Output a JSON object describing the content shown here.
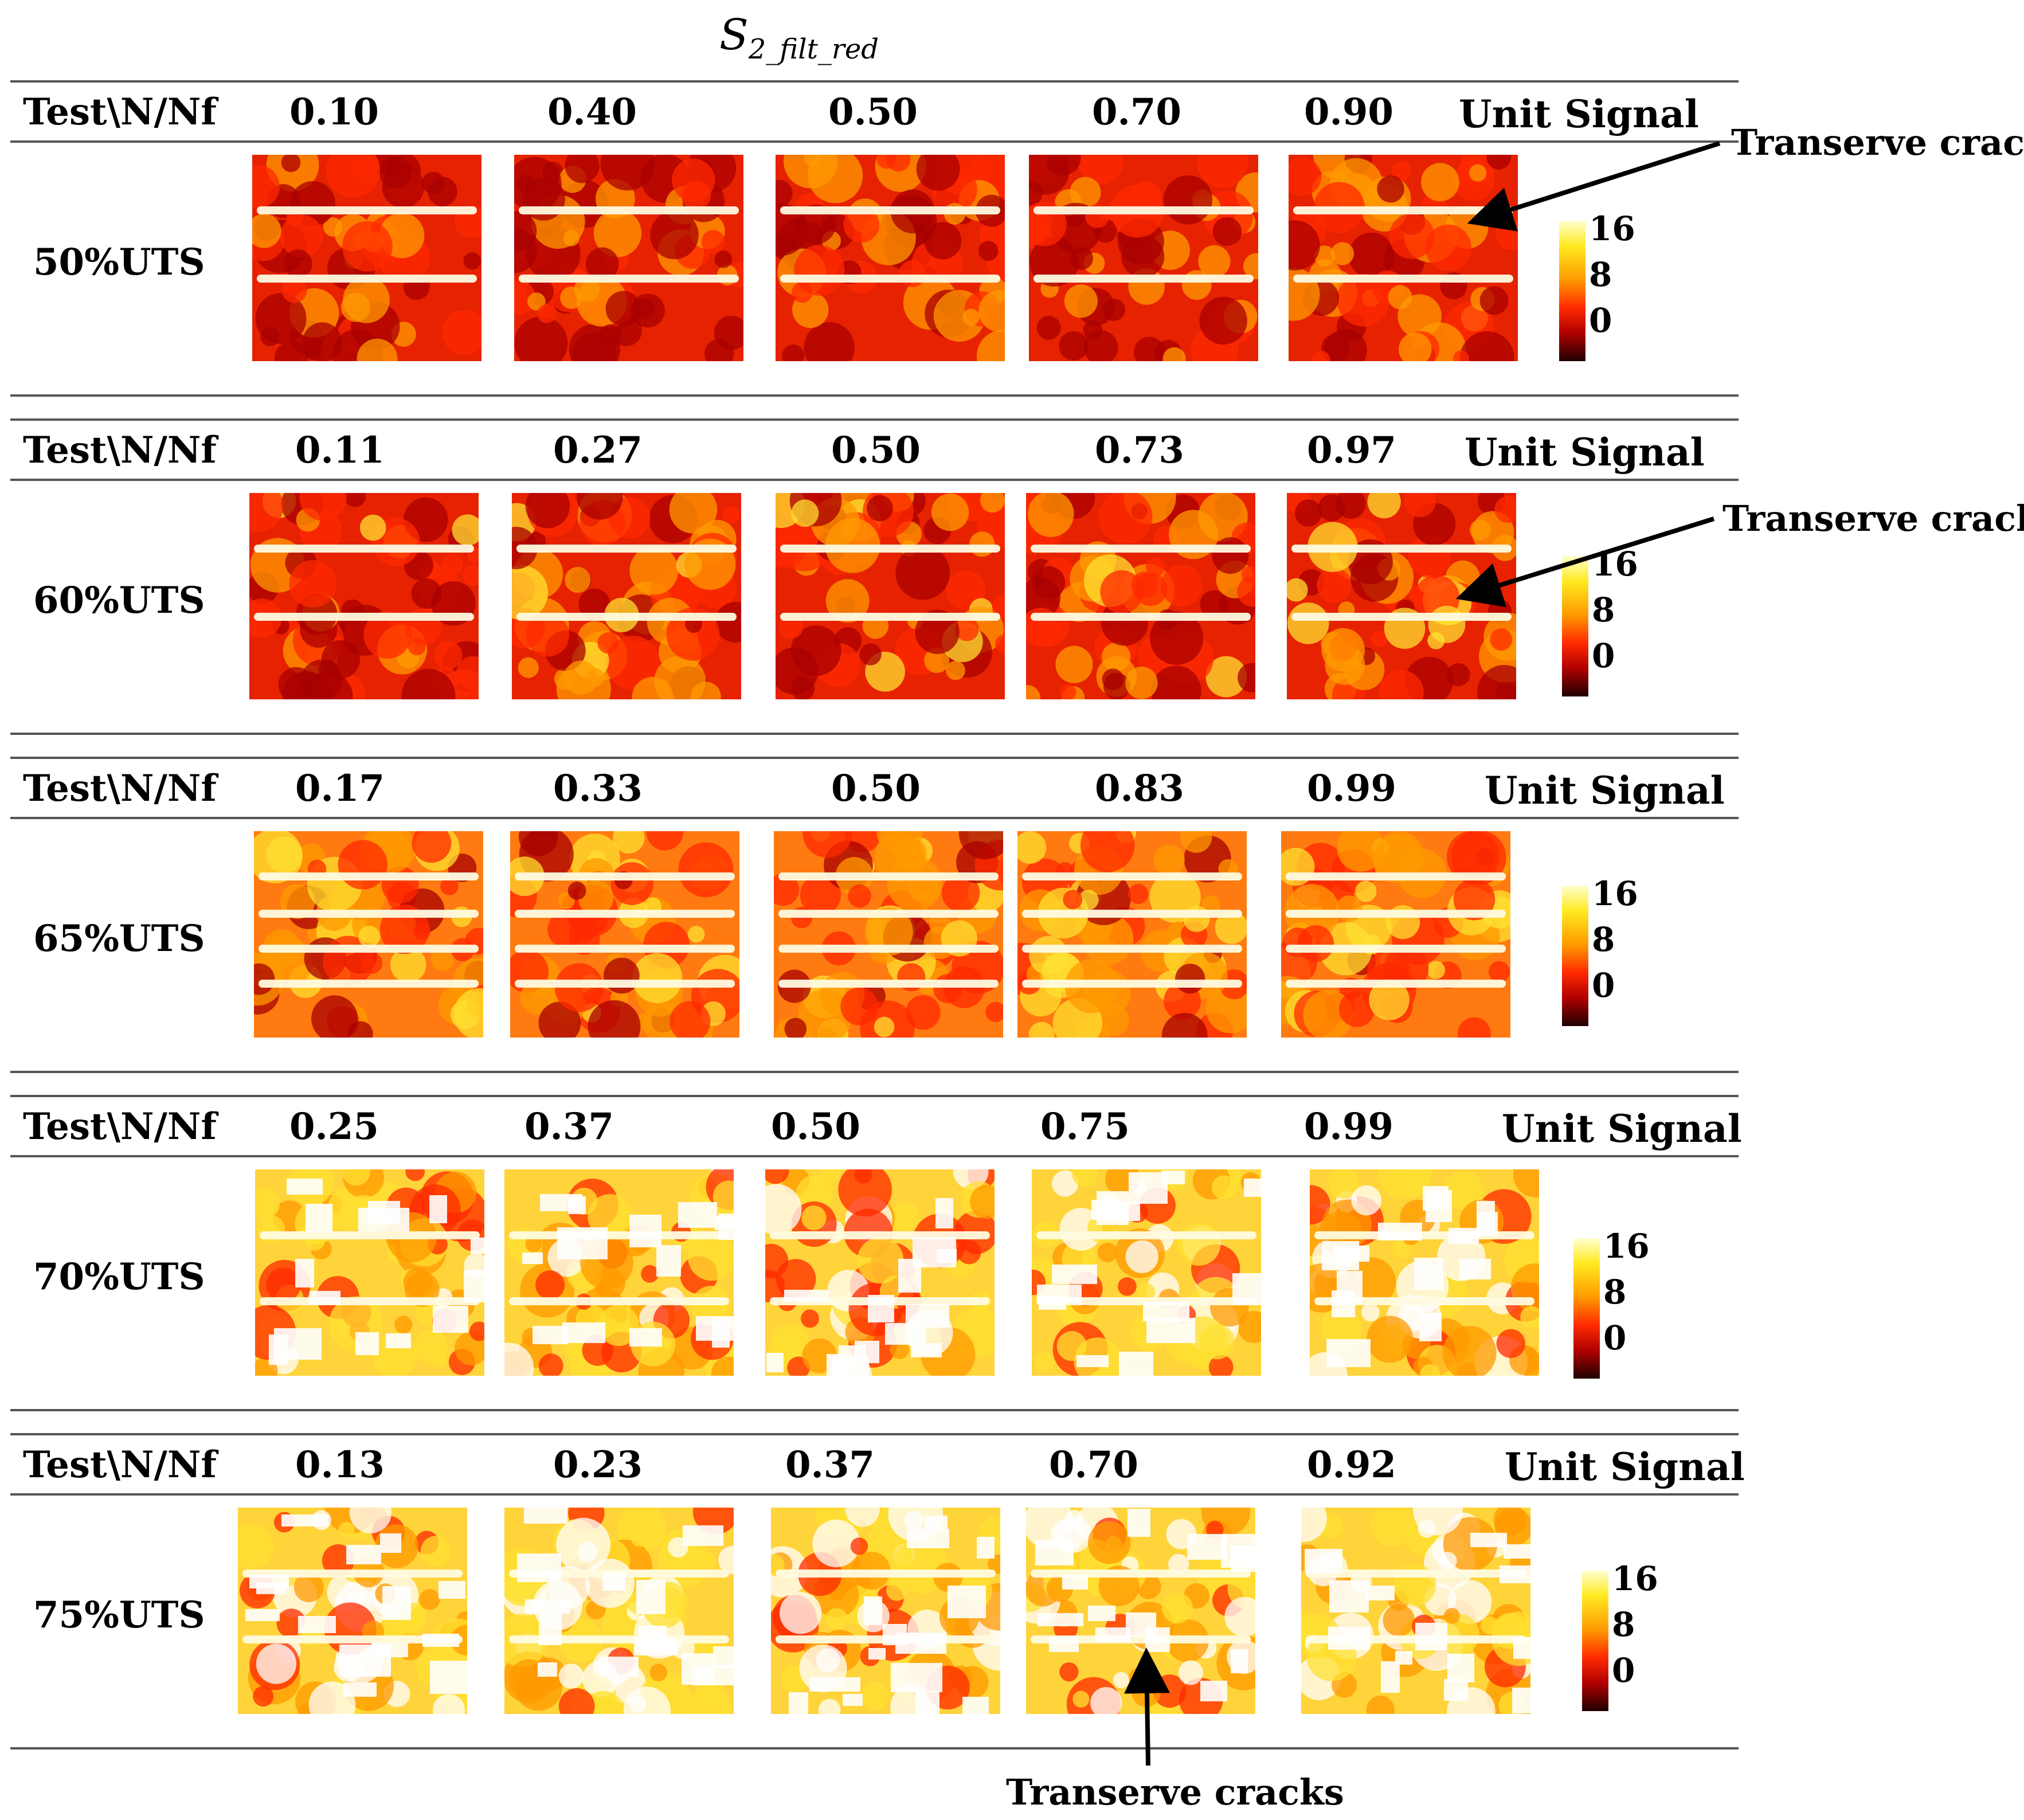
{
  "figure": {
    "title_main": "S",
    "title_sub": "2_filt_red",
    "header_label": "Test\\N/Nf",
    "unit_label": "Unit Signal",
    "colorbar_ticks": [
      "16",
      "8",
      "0"
    ],
    "annotation": "Transerve cracks",
    "colors": {
      "hot_dark": "#200000",
      "hot_red": "#ff2a00",
      "hot_orange": "#ff9a00",
      "hot_yellow": "#ffea20",
      "hot_white": "#ffffd0"
    }
  },
  "rows": [
    {
      "label": "50%UTS",
      "cycle_ratios": [
        "0.10",
        "0.40",
        "0.50",
        "0.70",
        "0.90"
      ]
    },
    {
      "label": "60%UTS",
      "cycle_ratios": [
        "0.11",
        "0.27",
        "0.50",
        "0.73",
        "0.97"
      ]
    },
    {
      "label": "65%UTS",
      "cycle_ratios": [
        "0.17",
        "0.33",
        "0.50",
        "0.83",
        "0.99"
      ]
    },
    {
      "label": "70%UTS",
      "cycle_ratios": [
        "0.25",
        "0.37",
        "0.50",
        "0.75",
        "0.99"
      ]
    },
    {
      "label": "75%UTS",
      "cycle_ratios": [
        "0.13",
        "0.23",
        "0.37",
        "0.70",
        "0.92"
      ]
    }
  ]
}
